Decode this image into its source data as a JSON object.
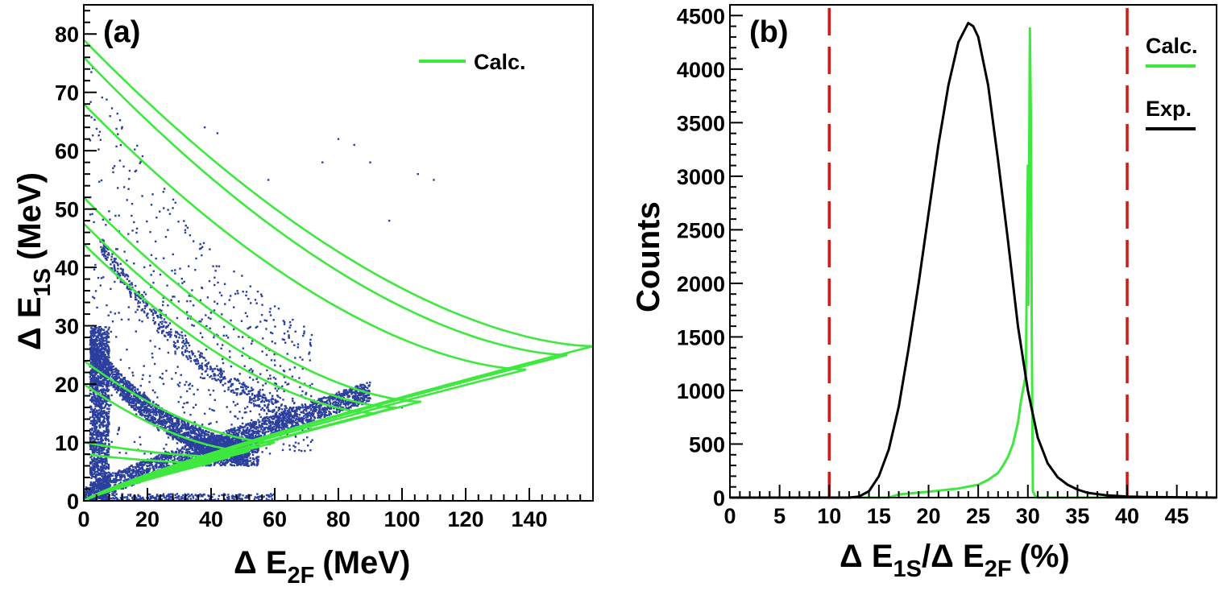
{
  "chart_data": [
    {
      "type": "scatter",
      "panel_label": "(a)",
      "xlabel_prefix": "Δ E",
      "xlabel_sub": "2F",
      "xlabel_unit": "(MeV)",
      "ylabel_prefix": "Δ E",
      "ylabel_sub": "1S",
      "ylabel_unit": "(MeV)",
      "xlim": [
        0,
        160
      ],
      "ylim": [
        0,
        85
      ],
      "xticks": [
        "0",
        "20",
        "40",
        "60",
        "80",
        "100",
        "120",
        "140"
      ],
      "yticks": [
        "0",
        "10",
        "20",
        "30",
        "40",
        "50",
        "60",
        "70",
        "80"
      ],
      "legend": [
        {
          "label": "Calc.",
          "color": "#3ee83e"
        }
      ],
      "colors": {
        "experiment": "#2b3f9e",
        "calc": "#3ee83e"
      },
      "calc_curves": [
        {
          "name": "curve-1",
          "x_tip": 160,
          "y_tip": 26.5,
          "y0": 79
        },
        {
          "name": "curve-2",
          "x_tip": 152,
          "y_tip": 25,
          "y0": 76
        },
        {
          "name": "curve-3",
          "x_tip": 139,
          "y_tip": 22.5,
          "y0": 68
        },
        {
          "name": "curve-4",
          "x_tip": 106,
          "y_tip": 17,
          "y0": 52
        },
        {
          "name": "curve-5",
          "x_tip": 98,
          "y_tip": 16,
          "y0": 47.5
        },
        {
          "name": "curve-6",
          "x_tip": 92,
          "y_tip": 15,
          "y0": 44
        },
        {
          "name": "curve-7",
          "x_tip": 60,
          "y_tip": 10,
          "y0": 24
        },
        {
          "name": "curve-8",
          "x_tip": 52,
          "y_tip": 8.5,
          "y0": 20
        },
        {
          "name": "curve-9",
          "x_tip": 46,
          "y_tip": 7.5,
          "y0": 10
        },
        {
          "name": "curve-10",
          "x_tip": 40,
          "y_tip": 6.5,
          "y0": 8
        }
      ]
    },
    {
      "type": "line",
      "panel_label": "(b)",
      "ylabel": "Counts",
      "xlabel_a": "Δ E",
      "xlabel_a_sub": "1S",
      "xlabel_b": "/Δ E",
      "xlabel_b_sub": "2F",
      "xlabel_unit": "(%)",
      "xlim": [
        0,
        49
      ],
      "ylim": [
        0,
        4600
      ],
      "xticks": [
        "0",
        "5",
        "10",
        "15",
        "20",
        "25",
        "30",
        "35",
        "40",
        "45"
      ],
      "yticks": [
        "0",
        "500",
        "1000",
        "1500",
        "2000",
        "2500",
        "3000",
        "3500",
        "4000",
        "4500"
      ],
      "cut_lines_x": [
        10,
        40
      ],
      "legend": [
        {
          "label": "Calc.",
          "color": "#3ee83e"
        },
        {
          "label": "Exp.",
          "color": "#000000"
        }
      ],
      "series": [
        {
          "name": "Exp.",
          "color": "#000000",
          "x": [
            0,
            12,
            13,
            14,
            15,
            16,
            17,
            18,
            19,
            20,
            21,
            22,
            23,
            24,
            24.5,
            25,
            26,
            27,
            28,
            29,
            30,
            31,
            32,
            33,
            34,
            35,
            36,
            38,
            40,
            42,
            49
          ],
          "y": [
            0,
            0,
            10,
            60,
            200,
            450,
            850,
            1400,
            2000,
            2650,
            3300,
            3850,
            4250,
            4430,
            4400,
            4300,
            3850,
            3150,
            2400,
            1600,
            1000,
            560,
            320,
            190,
            120,
            75,
            45,
            20,
            10,
            5,
            0
          ]
        },
        {
          "name": "Calc.",
          "color": "#3ee83e",
          "x": [
            0,
            16,
            17,
            20,
            23,
            25,
            26,
            27,
            27.5,
            28,
            28.5,
            29,
            29.3,
            29.6,
            29.8,
            30.0,
            30.05,
            30.2,
            30.3,
            30.4,
            30.5,
            30.7,
            31,
            49
          ],
          "y": [
            0,
            0,
            30,
            55,
            85,
            120,
            165,
            230,
            300,
            380,
            500,
            700,
            900,
            1050,
            1150,
            3100,
            1800,
            4380,
            3600,
            1500,
            60,
            20,
            0,
            0
          ]
        }
      ]
    }
  ]
}
